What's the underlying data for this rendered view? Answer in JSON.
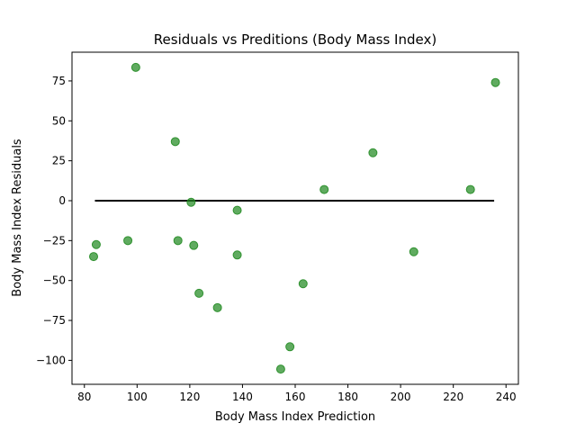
{
  "chart_data": {
    "type": "scatter",
    "title": "Residuals vs Preditions (Body Mass Index)",
    "xlabel": "Body Mass Index Prediction",
    "ylabel": "Body Mass Index Residuals",
    "xlim": [
      75.3,
      244.7
    ],
    "ylim": [
      -115,
      93
    ],
    "xticks": [
      80,
      100,
      120,
      140,
      160,
      180,
      200,
      220,
      240
    ],
    "yticks": [
      -100,
      -75,
      -50,
      -25,
      0,
      25,
      50,
      75
    ],
    "ytick_labels": [
      "−100",
      "−75",
      "−50",
      "−25",
      "0",
      "25",
      "50",
      "75"
    ],
    "grid": false,
    "point_color": "#228B22",
    "line_color": "#000000",
    "reference_line": {
      "y": 0,
      "x_start": 84,
      "x_end": 235.5
    },
    "points": [
      {
        "x": 83.5,
        "y": -35
      },
      {
        "x": 84.5,
        "y": -27.5
      },
      {
        "x": 96.5,
        "y": -25
      },
      {
        "x": 99.5,
        "y": 83.5
      },
      {
        "x": 114.5,
        "y": 37
      },
      {
        "x": 115.5,
        "y": -25
      },
      {
        "x": 120.5,
        "y": -1
      },
      {
        "x": 121.5,
        "y": -28
      },
      {
        "x": 123.5,
        "y": -58
      },
      {
        "x": 130.5,
        "y": -67
      },
      {
        "x": 138,
        "y": -6
      },
      {
        "x": 138,
        "y": -34
      },
      {
        "x": 154.5,
        "y": -105.5
      },
      {
        "x": 158,
        "y": -91.5
      },
      {
        "x": 163,
        "y": -52
      },
      {
        "x": 171,
        "y": 7
      },
      {
        "x": 189.5,
        "y": 30
      },
      {
        "x": 205,
        "y": -32
      },
      {
        "x": 226.5,
        "y": 7
      },
      {
        "x": 236,
        "y": 74
      }
    ]
  }
}
